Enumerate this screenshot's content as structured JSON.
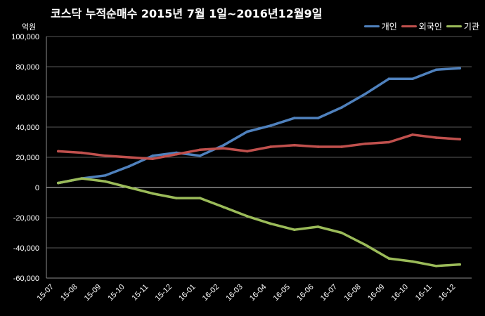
{
  "header": {
    "title": "코스닥 누적순매수 2015년 7월 1일~2016년12월9일",
    "unit": "억원"
  },
  "colors": {
    "background": "#000000",
    "individual": "#4f81bd",
    "foreign": "#c0504d",
    "institution": "#9bbb59",
    "grid": "#595959"
  },
  "chart_data": {
    "type": "line",
    "title": "코스닥 누적순매수 2015년 7월 1일~2016년12월9일",
    "ylabel": "억원",
    "xlabel": "",
    "ylim": [
      -60000,
      100000
    ],
    "y_ticks": [
      "100,000",
      "80,000",
      "60,000",
      "40,000",
      "20,000",
      "0",
      "-20,000",
      "-40,000",
      "-60,000"
    ],
    "y_tick_values": [
      100000,
      80000,
      60000,
      40000,
      20000,
      0,
      -20000,
      -40000,
      -60000
    ],
    "categories": [
      "15-07",
      "15-08",
      "15-09",
      "15-10",
      "15-11",
      "15-12",
      "16-01",
      "16-02",
      "16-03",
      "16-04",
      "16-05",
      "16-06",
      "16-07",
      "16-08",
      "16-09",
      "16-10",
      "16-11",
      "16-12"
    ],
    "grid": true,
    "legend_position": "top-right",
    "series": [
      {
        "name": "개인",
        "color": "#4f81bd",
        "values": [
          3000,
          6000,
          8000,
          14000,
          21000,
          23000,
          21000,
          28000,
          37000,
          41000,
          46000,
          46000,
          53000,
          62000,
          72000,
          72000,
          78000,
          79000
        ]
      },
      {
        "name": "외국인",
        "color": "#c0504d",
        "values": [
          24000,
          23000,
          21000,
          20000,
          19000,
          22000,
          25000,
          26000,
          24000,
          27000,
          28000,
          27000,
          27000,
          29000,
          30000,
          35000,
          33000,
          32000
        ]
      },
      {
        "name": "기관",
        "color": "#9bbb59",
        "values": [
          3000,
          6000,
          4000,
          0,
          -4000,
          -7000,
          -7000,
          -13000,
          -19000,
          -24000,
          -28000,
          -26000,
          -30000,
          -38000,
          -47000,
          -49000,
          -52000,
          -51000
        ]
      }
    ]
  }
}
